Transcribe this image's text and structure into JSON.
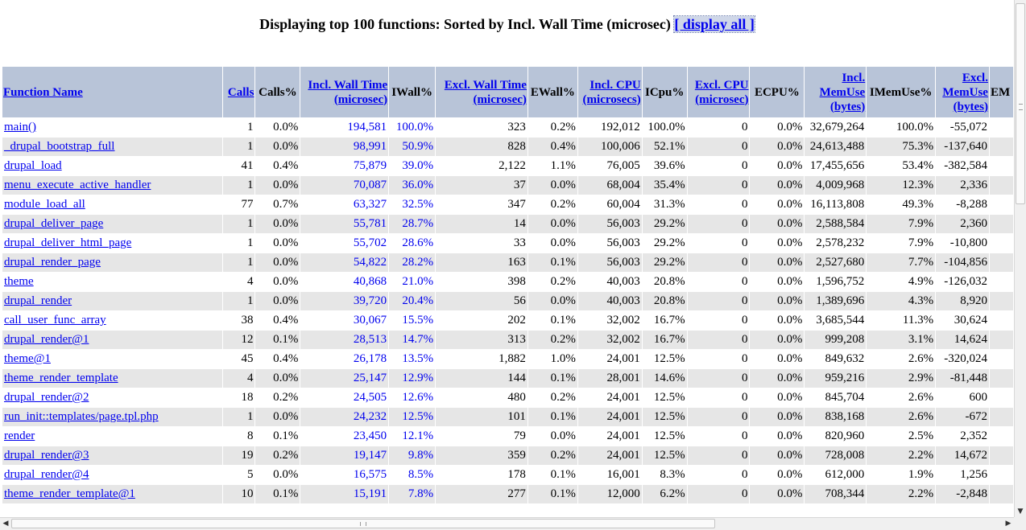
{
  "heading": {
    "text": "Displaying top 100 functions: Sorted by Incl. Wall Time (microsec) ",
    "display_all_link": "[ display all ]"
  },
  "columns": {
    "function_name": "Function Name",
    "calls": "Calls",
    "calls_pct": "Calls%",
    "incl_wall_1": "Incl. Wall Time",
    "incl_wall_2": "(microsec)",
    "iwall_pct": "IWall%",
    "excl_wall_1": "Excl. Wall Time",
    "excl_wall_2": "(microsec)",
    "ewall_pct": "EWall%",
    "incl_cpu_1": "Incl. CPU",
    "incl_cpu_2": "(microsecs)",
    "icpu_pct": "ICpu%",
    "excl_cpu_1": "Excl. CPU",
    "excl_cpu_2": "(microsec)",
    "ecpu_pct": "ECPU%",
    "incl_mem_1": "Incl.",
    "incl_mem_2": "MemUse",
    "incl_mem_3": "(bytes)",
    "imem_pct": "IMemUse%",
    "excl_mem_1": "Excl.",
    "excl_mem_2": "MemUse",
    "excl_mem_3": "(bytes)",
    "emem_pct_partial": "EM"
  },
  "rows": [
    {
      "fn": "main()",
      "calls": "1",
      "calls_pct": "0.0%",
      "iwall": "194,581",
      "iwall_pct": "100.0%",
      "ewall": "323",
      "ewall_pct": "0.2%",
      "icpu": "192,012",
      "icpu_pct": "100.0%",
      "ecpu": "0",
      "ecpu_pct": "0.0%",
      "imem": "32,679,264",
      "imem_pct": "100.0%",
      "emem": "-55,072"
    },
    {
      "fn": "_drupal_bootstrap_full",
      "calls": "1",
      "calls_pct": "0.0%",
      "iwall": "98,991",
      "iwall_pct": "50.9%",
      "ewall": "828",
      "ewall_pct": "0.4%",
      "icpu": "100,006",
      "icpu_pct": "52.1%",
      "ecpu": "0",
      "ecpu_pct": "0.0%",
      "imem": "24,613,488",
      "imem_pct": "75.3%",
      "emem": "-137,640"
    },
    {
      "fn": "drupal_load",
      "calls": "41",
      "calls_pct": "0.4%",
      "iwall": "75,879",
      "iwall_pct": "39.0%",
      "ewall": "2,122",
      "ewall_pct": "1.1%",
      "icpu": "76,005",
      "icpu_pct": "39.6%",
      "ecpu": "0",
      "ecpu_pct": "0.0%",
      "imem": "17,455,656",
      "imem_pct": "53.4%",
      "emem": "-382,584"
    },
    {
      "fn": "menu_execute_active_handler",
      "calls": "1",
      "calls_pct": "0.0%",
      "iwall": "70,087",
      "iwall_pct": "36.0%",
      "ewall": "37",
      "ewall_pct": "0.0%",
      "icpu": "68,004",
      "icpu_pct": "35.4%",
      "ecpu": "0",
      "ecpu_pct": "0.0%",
      "imem": "4,009,968",
      "imem_pct": "12.3%",
      "emem": "2,336"
    },
    {
      "fn": "module_load_all",
      "calls": "77",
      "calls_pct": "0.7%",
      "iwall": "63,327",
      "iwall_pct": "32.5%",
      "ewall": "347",
      "ewall_pct": "0.2%",
      "icpu": "60,004",
      "icpu_pct": "31.3%",
      "ecpu": "0",
      "ecpu_pct": "0.0%",
      "imem": "16,113,808",
      "imem_pct": "49.3%",
      "emem": "-8,288"
    },
    {
      "fn": "drupal_deliver_page",
      "calls": "1",
      "calls_pct": "0.0%",
      "iwall": "55,781",
      "iwall_pct": "28.7%",
      "ewall": "14",
      "ewall_pct": "0.0%",
      "icpu": "56,003",
      "icpu_pct": "29.2%",
      "ecpu": "0",
      "ecpu_pct": "0.0%",
      "imem": "2,588,584",
      "imem_pct": "7.9%",
      "emem": "2,360"
    },
    {
      "fn": "drupal_deliver_html_page",
      "calls": "1",
      "calls_pct": "0.0%",
      "iwall": "55,702",
      "iwall_pct": "28.6%",
      "ewall": "33",
      "ewall_pct": "0.0%",
      "icpu": "56,003",
      "icpu_pct": "29.2%",
      "ecpu": "0",
      "ecpu_pct": "0.0%",
      "imem": "2,578,232",
      "imem_pct": "7.9%",
      "emem": "-10,800"
    },
    {
      "fn": "drupal_render_page",
      "calls": "1",
      "calls_pct": "0.0%",
      "iwall": "54,822",
      "iwall_pct": "28.2%",
      "ewall": "163",
      "ewall_pct": "0.1%",
      "icpu": "56,003",
      "icpu_pct": "29.2%",
      "ecpu": "0",
      "ecpu_pct": "0.0%",
      "imem": "2,527,680",
      "imem_pct": "7.7%",
      "emem": "-104,856"
    },
    {
      "fn": "theme",
      "calls": "4",
      "calls_pct": "0.0%",
      "iwall": "40,868",
      "iwall_pct": "21.0%",
      "ewall": "398",
      "ewall_pct": "0.2%",
      "icpu": "40,003",
      "icpu_pct": "20.8%",
      "ecpu": "0",
      "ecpu_pct": "0.0%",
      "imem": "1,596,752",
      "imem_pct": "4.9%",
      "emem": "-126,032"
    },
    {
      "fn": "drupal_render",
      "calls": "1",
      "calls_pct": "0.0%",
      "iwall": "39,720",
      "iwall_pct": "20.4%",
      "ewall": "56",
      "ewall_pct": "0.0%",
      "icpu": "40,003",
      "icpu_pct": "20.8%",
      "ecpu": "0",
      "ecpu_pct": "0.0%",
      "imem": "1,389,696",
      "imem_pct": "4.3%",
      "emem": "8,920"
    },
    {
      "fn": "call_user_func_array",
      "calls": "38",
      "calls_pct": "0.4%",
      "iwall": "30,067",
      "iwall_pct": "15.5%",
      "ewall": "202",
      "ewall_pct": "0.1%",
      "icpu": "32,002",
      "icpu_pct": "16.7%",
      "ecpu": "0",
      "ecpu_pct": "0.0%",
      "imem": "3,685,544",
      "imem_pct": "11.3%",
      "emem": "30,624"
    },
    {
      "fn": "drupal_render@1",
      "calls": "12",
      "calls_pct": "0.1%",
      "iwall": "28,513",
      "iwall_pct": "14.7%",
      "ewall": "313",
      "ewall_pct": "0.2%",
      "icpu": "32,002",
      "icpu_pct": "16.7%",
      "ecpu": "0",
      "ecpu_pct": "0.0%",
      "imem": "999,208",
      "imem_pct": "3.1%",
      "emem": "14,624"
    },
    {
      "fn": "theme@1",
      "calls": "45",
      "calls_pct": "0.4%",
      "iwall": "26,178",
      "iwall_pct": "13.5%",
      "ewall": "1,882",
      "ewall_pct": "1.0%",
      "icpu": "24,001",
      "icpu_pct": "12.5%",
      "ecpu": "0",
      "ecpu_pct": "0.0%",
      "imem": "849,632",
      "imem_pct": "2.6%",
      "emem": "-320,024"
    },
    {
      "fn": "theme_render_template",
      "calls": "4",
      "calls_pct": "0.0%",
      "iwall": "25,147",
      "iwall_pct": "12.9%",
      "ewall": "144",
      "ewall_pct": "0.1%",
      "icpu": "28,001",
      "icpu_pct": "14.6%",
      "ecpu": "0",
      "ecpu_pct": "0.0%",
      "imem": "959,216",
      "imem_pct": "2.9%",
      "emem": "-81,448"
    },
    {
      "fn": "drupal_render@2",
      "calls": "18",
      "calls_pct": "0.2%",
      "iwall": "24,505",
      "iwall_pct": "12.6%",
      "ewall": "480",
      "ewall_pct": "0.2%",
      "icpu": "24,001",
      "icpu_pct": "12.5%",
      "ecpu": "0",
      "ecpu_pct": "0.0%",
      "imem": "845,704",
      "imem_pct": "2.6%",
      "emem": "600"
    },
    {
      "fn": "run_init::templates/page.tpl.php",
      "calls": "1",
      "calls_pct": "0.0%",
      "iwall": "24,232",
      "iwall_pct": "12.5%",
      "ewall": "101",
      "ewall_pct": "0.1%",
      "icpu": "24,001",
      "icpu_pct": "12.5%",
      "ecpu": "0",
      "ecpu_pct": "0.0%",
      "imem": "838,168",
      "imem_pct": "2.6%",
      "emem": "-672"
    },
    {
      "fn": "render",
      "calls": "8",
      "calls_pct": "0.1%",
      "iwall": "23,450",
      "iwall_pct": "12.1%",
      "ewall": "79",
      "ewall_pct": "0.0%",
      "icpu": "24,001",
      "icpu_pct": "12.5%",
      "ecpu": "0",
      "ecpu_pct": "0.0%",
      "imem": "820,960",
      "imem_pct": "2.5%",
      "emem": "2,352"
    },
    {
      "fn": "drupal_render@3",
      "calls": "19",
      "calls_pct": "0.2%",
      "iwall": "19,147",
      "iwall_pct": "9.8%",
      "ewall": "359",
      "ewall_pct": "0.2%",
      "icpu": "24,001",
      "icpu_pct": "12.5%",
      "ecpu": "0",
      "ecpu_pct": "0.0%",
      "imem": "728,008",
      "imem_pct": "2.2%",
      "emem": "14,672"
    },
    {
      "fn": "drupal_render@4",
      "calls": "5",
      "calls_pct": "0.0%",
      "iwall": "16,575",
      "iwall_pct": "8.5%",
      "ewall": "178",
      "ewall_pct": "0.1%",
      "icpu": "16,001",
      "icpu_pct": "8.3%",
      "ecpu": "0",
      "ecpu_pct": "0.0%",
      "imem": "612,000",
      "imem_pct": "1.9%",
      "emem": "1,256"
    },
    {
      "fn": "theme_render_template@1",
      "calls": "10",
      "calls_pct": "0.1%",
      "iwall": "15,191",
      "iwall_pct": "7.8%",
      "ewall": "277",
      "ewall_pct": "0.1%",
      "icpu": "12,000",
      "icpu_pct": "6.2%",
      "ecpu": "0",
      "ecpu_pct": "0.0%",
      "imem": "708,344",
      "imem_pct": "2.2%",
      "emem": "-2,848"
    }
  ],
  "scrollbars": {
    "up_arrow_icon": "arrow-up-icon",
    "down_arrow_icon": "arrow-down-icon",
    "left_arrow_icon": "arrow-left-icon",
    "right_arrow_icon": "arrow-right-icon"
  }
}
